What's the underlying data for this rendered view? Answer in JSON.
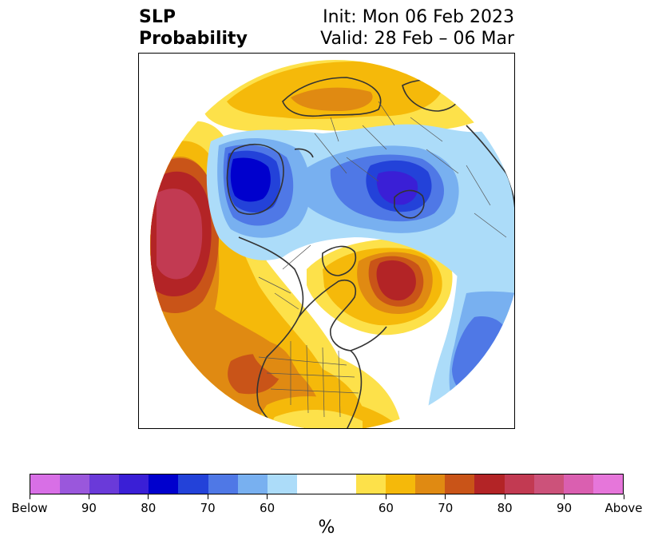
{
  "header": {
    "title_line1": "SLP",
    "title_line2": "Probability",
    "init_text": "Init: Mon 06 Feb 2023",
    "valid_text": "Valid: 28 Feb – 06 Mar"
  },
  "colorbar": {
    "unit": "%",
    "colors": [
      "#d86fe6",
      "#9a57dc",
      "#6a3ad9",
      "#3a1fd6",
      "#0000cd",
      "#2342d9",
      "#4f78e6",
      "#78b0f0",
      "#acdcf9",
      "#ffffff",
      "#ffffff",
      "#fde14a",
      "#f5b90a",
      "#e08a12",
      "#c95418",
      "#b32426",
      "#c23a52",
      "#cc527a",
      "#da5fb0",
      "#e676da"
    ],
    "tick_labels": [
      "Below",
      "90",
      "80",
      "70",
      "60",
      "60",
      "70",
      "80",
      "90",
      "Above"
    ]
  }
}
